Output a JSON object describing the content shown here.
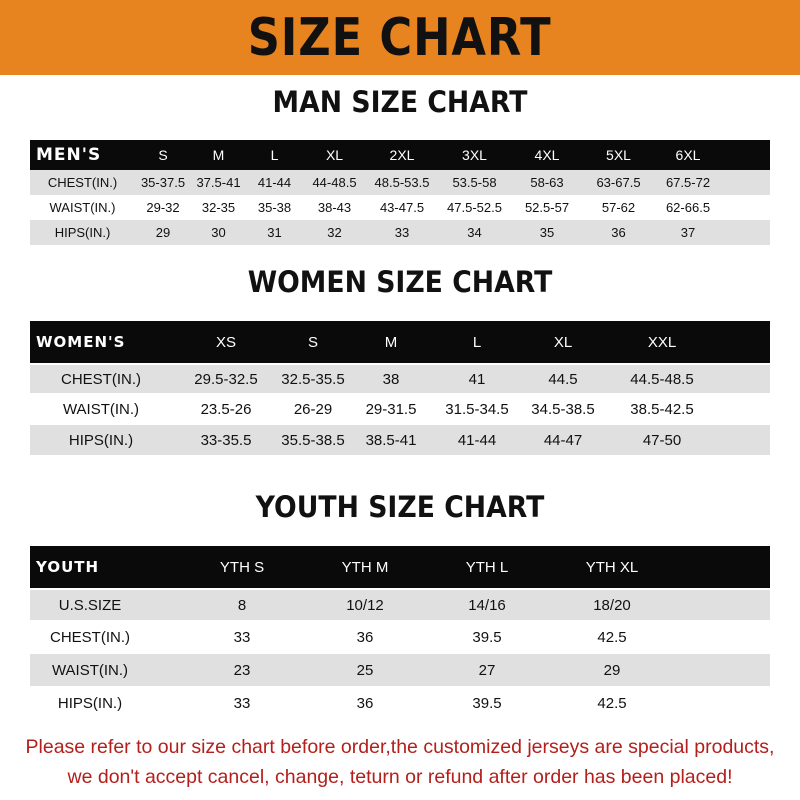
{
  "banner": {
    "title": "SIZE CHART",
    "color": "#e8841f"
  },
  "men": {
    "title": "MAN SIZE CHART",
    "header": [
      "MEN'S",
      "S",
      "M",
      "L",
      "XL",
      "2XL",
      "3XL",
      "4XL",
      "5XL",
      "6XL"
    ],
    "rows": [
      [
        "CHEST(IN.)",
        "35-37.5",
        "37.5-41",
        "41-44",
        "44-48.5",
        "48.5-53.5",
        "53.5-58",
        "58-63",
        "63-67.5",
        "67.5-72"
      ],
      [
        "WAIST(IN.)",
        "29-32",
        "32-35",
        "35-38",
        "38-43",
        "43-47.5",
        "47.5-52.5",
        "52.5-57",
        "57-62",
        "62-66.5"
      ],
      [
        "HIPS(IN.)",
        "29",
        "30",
        "31",
        "32",
        "33",
        "34",
        "35",
        "36",
        "37"
      ]
    ]
  },
  "women": {
    "title": "WOMEN SIZE CHART",
    "header": [
      "WOMEN'S",
      "XS",
      "S",
      "M",
      "L",
      "XL",
      "XXL"
    ],
    "rows": [
      [
        "CHEST(IN.)",
        "29.5-32.5",
        "32.5-35.5",
        "38",
        "41",
        "44.5",
        "44.5-48.5"
      ],
      [
        "WAIST(IN.)",
        "23.5-26",
        "26-29",
        "29-31.5",
        "31.5-34.5",
        "34.5-38.5",
        "38.5-42.5"
      ],
      [
        "HIPS(IN.)",
        "33-35.5",
        "35.5-38.5",
        "38.5-41",
        "41-44",
        "44-47",
        "47-50"
      ]
    ]
  },
  "youth": {
    "title": "YOUTH SIZE CHART",
    "header": [
      "YOUTH",
      "YTH S",
      "YTH M",
      "YTH L",
      "YTH XL"
    ],
    "rows": [
      [
        "U.S.SIZE",
        "8",
        "10/12",
        "14/16",
        "18/20"
      ],
      [
        "CHEST(IN.)",
        "33",
        "36",
        "39.5",
        "42.5"
      ],
      [
        "WAIST(IN.)",
        "23",
        "25",
        "27",
        "29"
      ],
      [
        "HIPS(IN.)",
        "33",
        "36",
        "39.5",
        "42.5"
      ]
    ]
  },
  "footer": {
    "line1": "Please refer to our size chart before order,the customized jerseys are special products,",
    "line2": "we don't accept cancel, change, teturn or refund after order has been placed!",
    "color": "#b3201c"
  }
}
